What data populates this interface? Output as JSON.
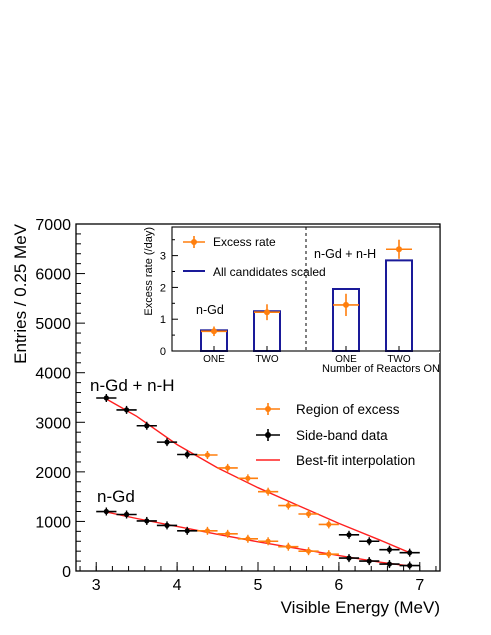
{
  "colors": {
    "excess": "#ff7f0e",
    "sideband": "#000000",
    "fit": "#ff2020",
    "bars": "#1a1a99"
  },
  "chart_data": [
    {
      "type": "scatter",
      "xlabel": "Visible Energy (MeV)",
      "ylabel": "Entries / 0.25 MeV",
      "xlim": [
        2.75,
        7.25
      ],
      "ylim": [
        0,
        7000
      ],
      "xticks": [
        "3",
        "4",
        "5",
        "6",
        "7"
      ],
      "yticks": [
        "0",
        "1000",
        "2000",
        "3000",
        "4000",
        "5000",
        "6000",
        "7000"
      ],
      "bin_width": 0.25,
      "annotations": [
        "n-Gd + n-H",
        "n-Gd"
      ],
      "legend": {
        "placement": "right",
        "entries": [
          "Region of excess",
          "Side-band data",
          "Best-fit interpolation"
        ]
      },
      "series": [
        {
          "name": "Side-band data",
          "group": "n-Gd + n-H",
          "x": [
            3.125,
            3.375,
            3.625,
            3.875,
            4.125,
            6.125,
            6.375,
            6.625,
            6.875
          ],
          "values": [
            3490,
            3250,
            2930,
            2600,
            2350,
            730,
            600,
            430,
            370
          ]
        },
        {
          "name": "Region of excess",
          "group": "n-Gd + n-H",
          "x": [
            4.375,
            4.625,
            4.875,
            5.125,
            5.375,
            5.625,
            5.875
          ],
          "values": [
            2340,
            2080,
            1870,
            1600,
            1320,
            1150,
            940
          ]
        },
        {
          "name": "Side-band data",
          "group": "n-Gd",
          "x": [
            3.125,
            3.375,
            3.625,
            3.875,
            4.125,
            6.125,
            6.375,
            6.625,
            6.875
          ],
          "values": [
            1200,
            1140,
            1010,
            920,
            810,
            260,
            200,
            140,
            110
          ]
        },
        {
          "name": "Region of excess",
          "group": "n-Gd",
          "x": [
            4.375,
            4.625,
            4.875,
            5.125,
            5.375,
            5.625,
            5.875
          ],
          "values": [
            810,
            750,
            650,
            600,
            490,
            400,
            340
          ]
        }
      ],
      "fits": [
        {
          "name": "Best-fit interpolation",
          "group": "n-Gd + n-H",
          "x": [
            3.125,
            3.5,
            4.0,
            4.5,
            5.0,
            5.5,
            6.0,
            6.5,
            6.875
          ],
          "values": [
            3470,
            3120,
            2550,
            2080,
            1680,
            1320,
            960,
            630,
            370
          ]
        },
        {
          "name": "Best-fit interpolation",
          "group": "n-Gd",
          "x": [
            3.125,
            3.5,
            4.0,
            4.5,
            5.0,
            5.5,
            6.0,
            6.5,
            6.875
          ],
          "values": [
            1190,
            1060,
            900,
            740,
            590,
            450,
            310,
            180,
            100
          ]
        }
      ]
    },
    {
      "type": "bar",
      "inset": true,
      "xlabel": "Number of Reactors ON",
      "ylabel": "Excess rate (/day)",
      "ylim": [
        0,
        3.9
      ],
      "yticks": [
        "0",
        "1",
        "2",
        "3"
      ],
      "categories": [
        "ONE",
        "TWO",
        "ONE",
        "TWO"
      ],
      "groups": [
        "n-Gd",
        "n-Gd + n-H"
      ],
      "legend": {
        "placement": "top-left",
        "entries": [
          "Excess rate",
          "All candidates scaled"
        ]
      },
      "series": [
        {
          "name": "All candidates scaled",
          "values": [
            0.65,
            1.25,
            1.95,
            2.85
          ]
        },
        {
          "name": "Excess rate",
          "values": [
            0.62,
            1.22,
            1.45,
            3.2
          ],
          "errors": [
            0.15,
            0.25,
            0.35,
            0.3
          ]
        }
      ]
    }
  ]
}
